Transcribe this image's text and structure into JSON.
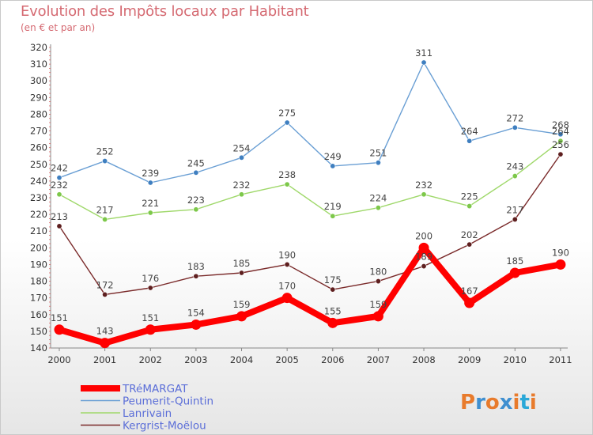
{
  "header": {
    "title": "Evolution des Impôts locaux par Habitant",
    "subtitle": "(en € et par an)"
  },
  "logo": {
    "text": "Proxiti"
  },
  "chart_data": {
    "type": "line",
    "title": "Evolution des Impôts locaux par Habitant",
    "subtitle": "(en € et par an)",
    "x": [
      2000,
      2001,
      2002,
      2003,
      2004,
      2005,
      2006,
      2007,
      2008,
      2009,
      2010,
      2011
    ],
    "ylim": [
      140,
      320
    ],
    "y_ticks": [
      140,
      150,
      160,
      170,
      180,
      190,
      200,
      210,
      220,
      230,
      240,
      250,
      260,
      270,
      280,
      290,
      300,
      310,
      320
    ],
    "grid": false,
    "legend_position": "bottom-left",
    "series": [
      {
        "name": "Peumerit-Quintin",
        "color": "#6a9fd4",
        "point_color": "#3f7fc0",
        "values": [
          242,
          252,
          239,
          245,
          254,
          275,
          249,
          251,
          311,
          264,
          272,
          268
        ]
      },
      {
        "name": "Lanrivain",
        "color": "#9fd86a",
        "point_color": "#7dc84a",
        "values": [
          232,
          217,
          221,
          223,
          232,
          238,
          219,
          224,
          232,
          225,
          243,
          264
        ]
      },
      {
        "name": "Kergrist-Moëlou",
        "color": "#7a2a2a",
        "point_color": "#5e1f1f",
        "values": [
          213,
          172,
          176,
          183,
          185,
          190,
          175,
          180,
          189,
          202,
          217,
          256
        ]
      },
      {
        "name": "TRéMARGAT",
        "color": "#ff0000",
        "point_color": "#ff0000",
        "values": [
          151,
          143,
          151,
          154,
          159,
          170,
          155,
          159,
          200,
          167,
          185,
          190
        ]
      }
    ],
    "labels": {
      "Peumerit-Quintin": [
        "242",
        "252",
        "239",
        "245",
        "254",
        "275",
        "249",
        "251",
        "311",
        "264",
        "272",
        "268"
      ],
      "Lanrivain": [
        "232",
        "217",
        "221",
        "223",
        "232",
        "238",
        "219",
        "224",
        "232",
        "225",
        "243",
        "264"
      ],
      "Kergrist-Moëlou": [
        "213",
        "172",
        "176",
        "183",
        "185",
        "190",
        "175",
        "180",
        "189",
        "202",
        "217",
        "256"
      ],
      "TRéMARGAT": [
        "151",
        "143",
        "151",
        "154",
        "159",
        "170",
        "155",
        "159",
        "200",
        "167",
        "185",
        "190"
      ]
    }
  }
}
